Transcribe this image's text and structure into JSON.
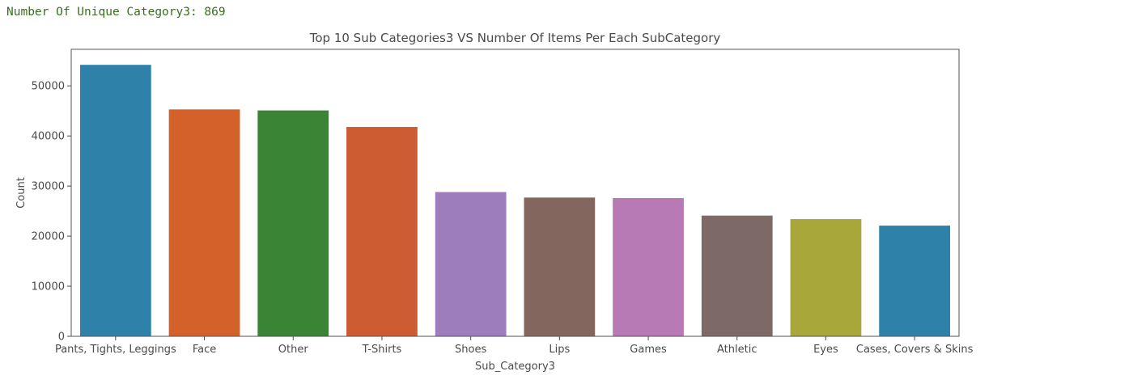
{
  "console": {
    "text": "Number Of Unique Category3: 869"
  },
  "chart_data": {
    "type": "bar",
    "title": "Top 10 Sub Categories3 VS Number Of Items Per Each SubCategory",
    "xlabel": "Sub_Category3",
    "ylabel": "Count",
    "categories": [
      "Pants, Tights, Leggings",
      "Face",
      "Other",
      "T-Shirts",
      "Shoes",
      "Lips",
      "Games",
      "Athletic",
      "Eyes",
      "Cases, Covers & Skins"
    ],
    "values": [
      54200,
      45300,
      45100,
      41800,
      28800,
      27700,
      27600,
      24100,
      23400,
      22100
    ],
    "colors": [
      "#2e82aa",
      "#d46129",
      "#398435",
      "#cd5c33",
      "#9e7dbd",
      "#83675f",
      "#b77ab5",
      "#7d6966",
      "#a8a83a",
      "#2e82aa"
    ],
    "ylim": [
      0,
      57300
    ],
    "yticks": [
      0,
      10000,
      20000,
      30000,
      40000,
      50000
    ],
    "grid": false
  }
}
